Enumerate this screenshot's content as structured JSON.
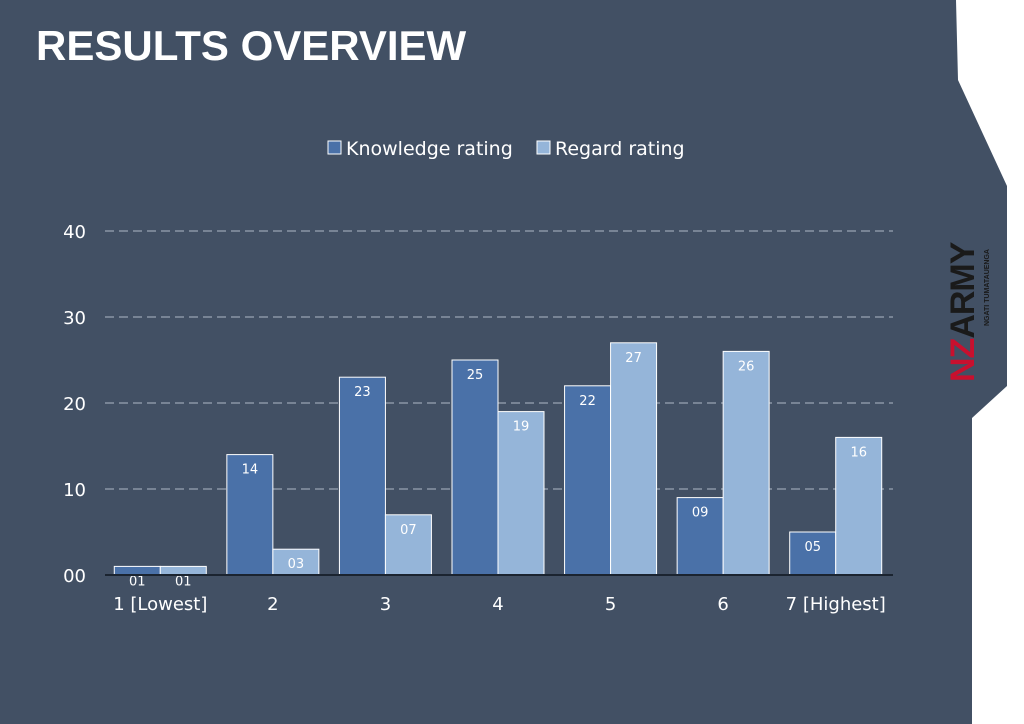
{
  "slide": {
    "title": "RESULTS OVERVIEW"
  },
  "logo": {
    "nz": "NZ",
    "army": "ARMY",
    "subtitle": "NGATI TUMATAUENGA"
  },
  "colors": {
    "background": "#425064",
    "knowledge": "#4a71a8",
    "regard": "#95b5d9",
    "grid": "#8a96a5",
    "text": "#ffffff",
    "panel": "#ffffff",
    "brand_red": "#c8102e"
  },
  "chart_data": {
    "type": "bar",
    "categories": [
      "1 [Lowest]",
      "2",
      "3",
      "4",
      "5",
      "6",
      "7 [Highest]"
    ],
    "series": [
      {
        "name": "Knowledge rating",
        "values": [
          1,
          14,
          23,
          25,
          22,
          9,
          5
        ],
        "labels": [
          "01",
          "14",
          "23",
          "25",
          "22",
          "09",
          "05"
        ]
      },
      {
        "name": "Regard rating",
        "values": [
          1,
          3,
          7,
          19,
          27,
          26,
          16
        ],
        "labels": [
          "01",
          "03",
          "07",
          "19",
          "27",
          "26",
          "16"
        ]
      }
    ],
    "ylim": [
      0,
      40
    ],
    "yticks": [
      0,
      10,
      20,
      30,
      40
    ],
    "ytick_labels": [
      "00",
      "10",
      "20",
      "30",
      "40"
    ],
    "grid": true,
    "grid_style": "dashed",
    "legend_position": "top-center",
    "title": "",
    "xlabel": "",
    "ylabel": ""
  }
}
